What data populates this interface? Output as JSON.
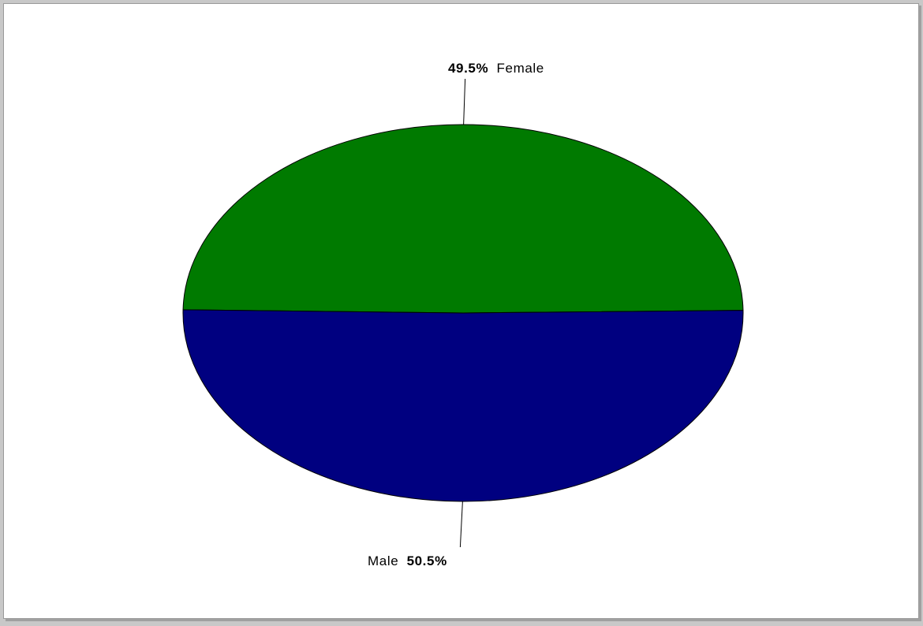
{
  "chart_data": {
    "type": "pie",
    "title": "",
    "slices": [
      {
        "label": "Female",
        "percent": 49.5,
        "percent_text": "49.5%",
        "color": "#007a00"
      },
      {
        "label": "Male",
        "percent": 50.5,
        "percent_text": "50.5%",
        "color": "#000080"
      }
    ],
    "legend": "none",
    "label_style": "outside-with-leader-lines"
  }
}
